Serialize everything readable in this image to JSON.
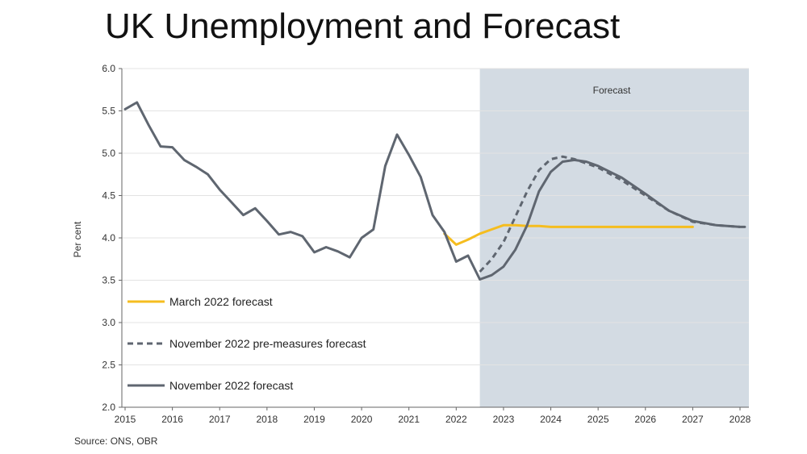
{
  "slide": {
    "title": "UK Unemployment and Forecast"
  },
  "source_note": "Source: ONS, OBR",
  "colors": {
    "march": "#F5BD1F",
    "nov_pre": "#5F6670",
    "nov": "#5F6670",
    "forecast_band": "#D3DBE3",
    "grid": "#E3E3E3"
  },
  "chart_data": {
    "type": "line",
    "title": "",
    "xlabel": "",
    "ylabel": "Per cent",
    "xlim": [
      2015,
      2028
    ],
    "ylim": [
      2.0,
      6.0
    ],
    "xticks": [
      "2015",
      "2016",
      "2017",
      "2018",
      "2019",
      "2020",
      "2021",
      "2022",
      "2023",
      "2024",
      "2025",
      "2026",
      "2027",
      "2028"
    ],
    "yticks": [
      "2.0",
      "2.5",
      "3.0",
      "3.5",
      "4.0",
      "4.5",
      "5.0",
      "5.5",
      "6.0"
    ],
    "grid": true,
    "legend_position": "bottom-left",
    "forecast_region": {
      "label": "Forecast",
      "x_start": 2022.5,
      "x_end": 2028.2
    },
    "series": [
      {
        "name": "March 2022 forecast",
        "style": "solid",
        "color": "#F5BD1F",
        "points": [
          [
            2021.75,
            4.05
          ],
          [
            2022.0,
            3.92
          ],
          [
            2022.25,
            3.98
          ],
          [
            2022.5,
            4.05
          ],
          [
            2022.75,
            4.1
          ],
          [
            2023.0,
            4.15
          ],
          [
            2023.25,
            4.15
          ],
          [
            2023.5,
            4.14
          ],
          [
            2023.75,
            4.14
          ],
          [
            2024.0,
            4.13
          ],
          [
            2024.5,
            4.13
          ],
          [
            2025.0,
            4.13
          ],
          [
            2025.5,
            4.13
          ],
          [
            2026.0,
            4.13
          ],
          [
            2026.5,
            4.13
          ],
          [
            2027.0,
            4.13
          ]
        ]
      },
      {
        "name": "November 2022 pre-measures forecast",
        "style": "dashed",
        "color": "#5F6670",
        "points": [
          [
            2022.5,
            3.6
          ],
          [
            2022.75,
            3.75
          ],
          [
            2023.0,
            3.95
          ],
          [
            2023.25,
            4.25
          ],
          [
            2023.5,
            4.55
          ],
          [
            2023.75,
            4.8
          ],
          [
            2024.0,
            4.93
          ],
          [
            2024.25,
            4.96
          ],
          [
            2024.5,
            4.93
          ],
          [
            2024.75,
            4.88
          ],
          [
            2025.0,
            4.83
          ],
          [
            2025.5,
            4.68
          ],
          [
            2026.0,
            4.5
          ],
          [
            2026.5,
            4.32
          ],
          [
            2027.0,
            4.19
          ],
          [
            2027.5,
            4.15
          ],
          [
            2028.0,
            4.13
          ]
        ]
      },
      {
        "name": "November 2022 forecast",
        "style": "solid",
        "color": "#5F6670",
        "points": [
          [
            2015.0,
            5.52
          ],
          [
            2015.25,
            5.6
          ],
          [
            2015.5,
            5.33
          ],
          [
            2015.75,
            5.08
          ],
          [
            2016.0,
            5.07
          ],
          [
            2016.25,
            4.92
          ],
          [
            2016.5,
            4.84
          ],
          [
            2016.75,
            4.75
          ],
          [
            2017.0,
            4.57
          ],
          [
            2017.25,
            4.42
          ],
          [
            2017.5,
            4.27
          ],
          [
            2017.75,
            4.35
          ],
          [
            2018.0,
            4.2
          ],
          [
            2018.25,
            4.04
          ],
          [
            2018.5,
            4.07
          ],
          [
            2018.75,
            4.02
          ],
          [
            2019.0,
            3.83
          ],
          [
            2019.25,
            3.89
          ],
          [
            2019.5,
            3.84
          ],
          [
            2019.75,
            3.77
          ],
          [
            2020.0,
            4.0
          ],
          [
            2020.25,
            4.1
          ],
          [
            2020.5,
            4.85
          ],
          [
            2020.75,
            5.22
          ],
          [
            2021.0,
            4.98
          ],
          [
            2021.25,
            4.72
          ],
          [
            2021.5,
            4.27
          ],
          [
            2021.75,
            4.07
          ],
          [
            2022.0,
            3.72
          ],
          [
            2022.25,
            3.79
          ],
          [
            2022.5,
            3.51
          ],
          [
            2022.75,
            3.56
          ],
          [
            2023.0,
            3.66
          ],
          [
            2023.25,
            3.86
          ],
          [
            2023.5,
            4.15
          ],
          [
            2023.75,
            4.55
          ],
          [
            2024.0,
            4.78
          ],
          [
            2024.25,
            4.9
          ],
          [
            2024.5,
            4.92
          ],
          [
            2024.75,
            4.9
          ],
          [
            2025.0,
            4.85
          ],
          [
            2025.5,
            4.71
          ],
          [
            2026.0,
            4.52
          ],
          [
            2026.5,
            4.32
          ],
          [
            2027.0,
            4.2
          ],
          [
            2027.5,
            4.15
          ],
          [
            2028.0,
            4.13
          ],
          [
            2028.1,
            4.13
          ]
        ]
      }
    ],
    "annotations": [
      "Forecast"
    ]
  }
}
